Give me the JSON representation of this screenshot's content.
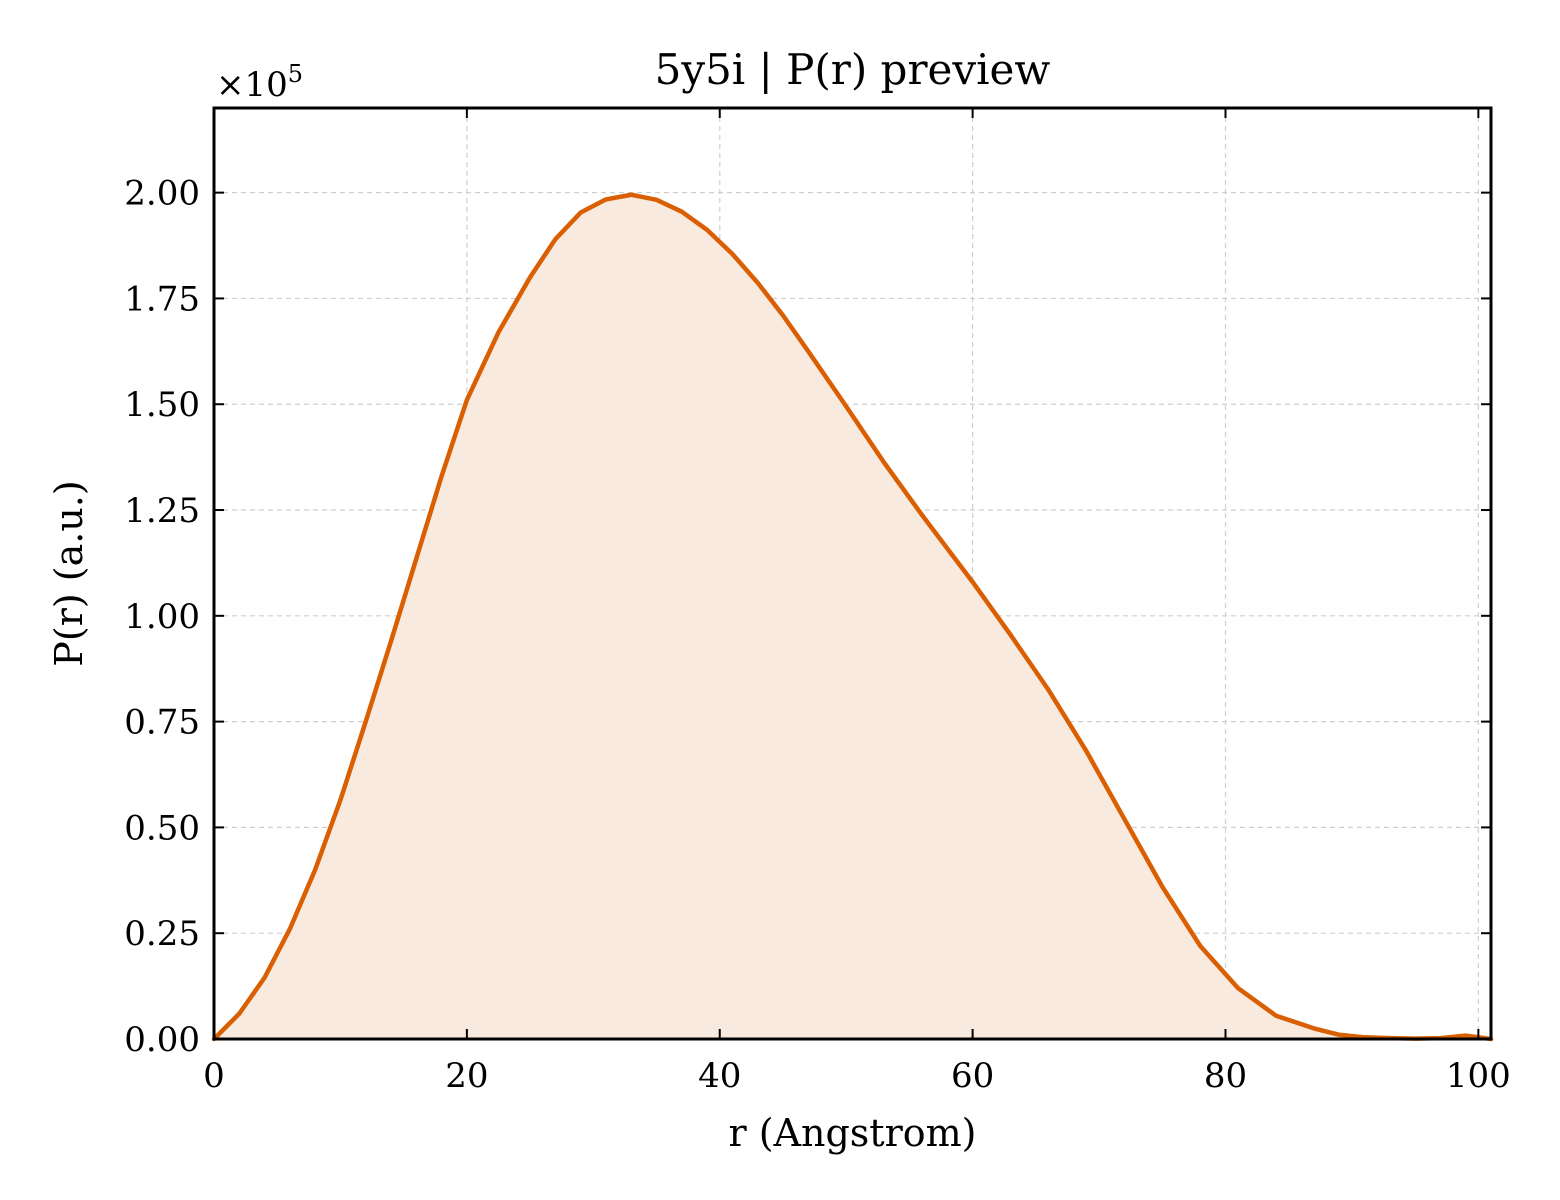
{
  "chart_data": {
    "type": "area",
    "title": "5y5i | P(r) preview",
    "xlabel": "r (Angstrom)",
    "ylabel": "P(r) (a.u.)",
    "y_multiplier": {
      "base": "×10",
      "exponent": "5"
    },
    "xlim": [
      0,
      101
    ],
    "ylim": [
      0,
      2.2
    ],
    "grid": true,
    "x_ticks": [
      0,
      20,
      40,
      60,
      80,
      100
    ],
    "x_tick_labels": [
      "0",
      "20",
      "40",
      "60",
      "80",
      "100"
    ],
    "y_ticks": [
      0,
      0.25,
      0.5,
      0.75,
      1.0,
      1.25,
      1.5,
      1.75,
      2.0
    ],
    "y_tick_labels": [
      "0.00",
      "0.25",
      "0.50",
      "0.75",
      "1.00",
      "1.25",
      "1.50",
      "1.75",
      "2.00"
    ],
    "line_color": "#d95f02",
    "fill_color": "#f9eadf",
    "series": [
      {
        "x": [
          0,
          2,
          4,
          6,
          8,
          10,
          12,
          14,
          16,
          18,
          20,
          22.5,
          25,
          27,
          29,
          31,
          33,
          35,
          37,
          39,
          41,
          43,
          45,
          47,
          50,
          53,
          56,
          60,
          63,
          66,
          69,
          72,
          75,
          78,
          81,
          84,
          87,
          89,
          91,
          93,
          95,
          97,
          99,
          101
        ],
        "y": [
          0.0,
          0.06,
          0.145,
          0.26,
          0.4,
          0.565,
          0.75,
          0.94,
          1.135,
          1.33,
          1.51,
          1.67,
          1.8,
          1.89,
          1.953,
          1.984,
          1.995,
          1.983,
          1.955,
          1.912,
          1.855,
          1.787,
          1.71,
          1.625,
          1.495,
          1.362,
          1.238,
          1.08,
          0.955,
          0.825,
          0.68,
          0.52,
          0.36,
          0.22,
          0.12,
          0.055,
          0.025,
          0.01,
          0.004,
          0.002,
          0.001,
          0.002,
          0.008,
          0.0
        ]
      }
    ]
  }
}
